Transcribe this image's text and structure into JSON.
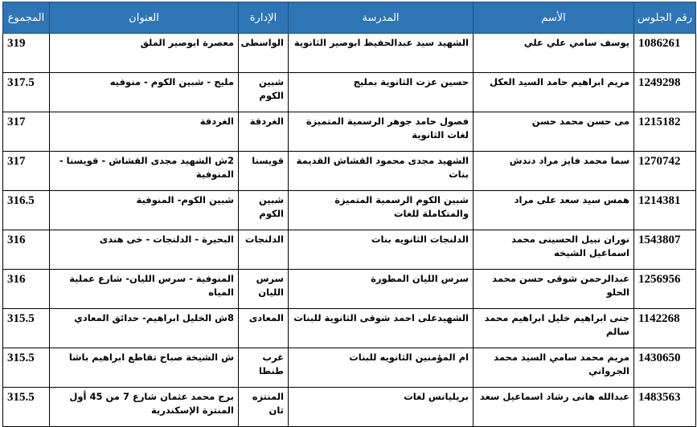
{
  "table": {
    "headers": [
      "رقم الجلوس",
      "الأسم",
      "المدرسة",
      "الإدارة",
      "العنوان",
      "المجموع"
    ],
    "rows": [
      [
        "1086261",
        "يوسف سامي علي علي",
        "الشهيد سيد عبدالحفيظ ابوصير الثانوية",
        "الواسطى",
        "معصرة ابوصير الملق",
        319
      ],
      [
        "1249298",
        "مريم ابراهيم حامد السيد العكل",
        "حسين عزت الثانوية بمليج",
        "شبين الكوم",
        "مليج - شبين الكوم - منوفيه",
        317.5
      ],
      [
        "1215182",
        "مى حسن محمد حسن",
        "فصول حامد جوهر الرسمية المتميزة لغات الثانوية",
        "الغردقة",
        "الغردقة",
        317
      ],
      [
        "1270742",
        "سما محمد فايز مراد دندش",
        "الشهيد مجدى محمود القشاش القديمة بنات",
        "قويسنا",
        "2ش الشهيد مجدى القشاش - قويسنا - المنوفية",
        317
      ],
      [
        "1214381",
        "همس سيد سعد على مراد",
        "شبين الكوم الرسمية المتميزة والمتكاملة للغات",
        "شبين الكوم",
        "شبين الكوم- المنوفية",
        316.5
      ],
      [
        "1543807",
        "نوران نبيل الحسينى محمد اسماعيل الشيخه",
        "الدلنجات الثانويه بنات",
        "الدلنجات",
        "البحيرة - الدلنجات - خى هندى",
        316
      ],
      [
        "1256956",
        "عبدالرحمن شوقى حسن محمد الحلو",
        "سرس الليان المطورة",
        "سرس الليان",
        "المنوفية - سرس الليان- شارع عملية المياه",
        316
      ],
      [
        "1142268",
        "جنى ابراهيم خليل ابراهيم محمد سالم",
        "الشهيدعلى احمد شوقى الثانوية للبنات",
        "المعادى",
        "8ش الخليل ابراهيم- حدائق المعادي",
        315.5
      ],
      [
        "1430650",
        "مريم محمد سامي السيد محمد الجرواني",
        "ام المؤمنين الثانويه للبنات",
        "غرب طنطا",
        "ش الشيخة صباح تقاطع ابراهيم باشا",
        315.5
      ],
      [
        "1483563",
        "عبدالله هانى رشاد اسماعيل سعد",
        "بريليانس لغات",
        "المنتزه ثان",
        "برج محمد عثمان شارع 7 من 45 أول المنتزة الإسكندرية",
        315.5
      ]
    ]
  }
}
